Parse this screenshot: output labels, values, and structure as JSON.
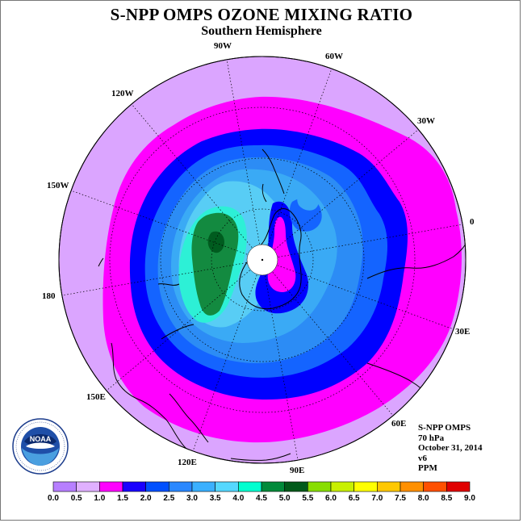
{
  "title": "S-NPP OMPS OZONE MIXING RATIO",
  "subtitle": "Southern Hemisphere",
  "longitude_labels": {
    "lon_90w": "90W",
    "lon_60w": "60W",
    "lon_30w": "30W",
    "lon_0": "0",
    "lon_30e": "30E",
    "lon_60e": "60E",
    "lon_90e": "90E",
    "lon_120e": "120E",
    "lon_150e": "150E",
    "lon_180": "180",
    "lon_150w": "150W",
    "lon_120w": "120W"
  },
  "info": {
    "instrument": "S-NPP OMPS",
    "level": "70 hPa",
    "date": "October 31, 2014",
    "version": "v6",
    "unit": "PPM"
  },
  "logo": {
    "text": "NOAA"
  },
  "colorbar": {
    "ticks": [
      "0.0",
      "0.5",
      "1.0",
      "1.5",
      "2.0",
      "2.5",
      "3.0",
      "3.5",
      "4.0",
      "4.5",
      "5.0",
      "5.5",
      "6.0",
      "6.5",
      "7.0",
      "7.5",
      "8.0",
      "8.5",
      "9.0"
    ],
    "colors": [
      "#b77fff",
      "#e0b0ff",
      "#ff00ff",
      "#1a00ff",
      "#0050ff",
      "#2a88ff",
      "#3ab0ff",
      "#55d8ff",
      "#00ffd0",
      "#008a3a",
      "#005a1a",
      "#88dd00",
      "#c8f000",
      "#ffff00",
      "#ffc800",
      "#ff9000",
      "#ff5000",
      "#e00000",
      "#7a5030"
    ]
  },
  "colors": {
    "level_0_5": "#dba5ff",
    "level_1_0": "#ff00ff",
    "level_1_5": "#0000ff",
    "level_2_0": "#1464ff",
    "level_2_5": "#2c8cf5",
    "level_3_0": "#3aaaf5",
    "level_3_5": "#58cdf5",
    "level_4_0": "#2df0d6",
    "level_4_5": "#138a40",
    "level_5_0": "#005c1f"
  }
}
